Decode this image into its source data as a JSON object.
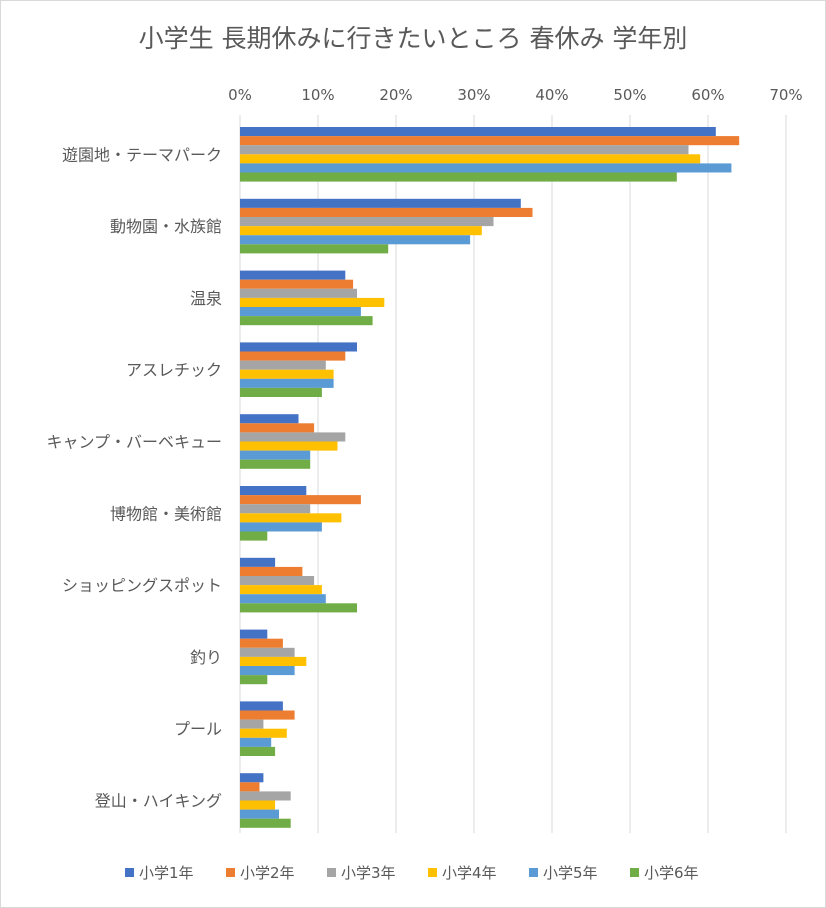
{
  "chart_data": {
    "type": "bar",
    "orientation": "horizontal",
    "title": "小学生 長期休みに行きたいところ 春休み 学年別",
    "xlabel": "",
    "ylabel": "",
    "xlim": [
      0,
      0.7
    ],
    "x_tick_labels": [
      "0%",
      "10%",
      "20%",
      "30%",
      "40%",
      "50%",
      "60%",
      "70%"
    ],
    "x_axis_position": "top",
    "grid": true,
    "legend_position": "bottom",
    "categories": [
      "遊園地・テーマパーク",
      "動物園・水族館",
      "温泉",
      "アスレチック",
      "キャンプ・バーベキュー",
      "博物館・美術館",
      "ショッピングスポット",
      "釣り",
      "プール",
      "登山・ハイキング"
    ],
    "series": [
      {
        "name": "小学1年",
        "color": "#4472C4",
        "values": [
          0.61,
          0.36,
          0.135,
          0.15,
          0.075,
          0.085,
          0.045,
          0.035,
          0.055,
          0.03
        ]
      },
      {
        "name": "小学2年",
        "color": "#ED7D31",
        "values": [
          0.64,
          0.375,
          0.145,
          0.135,
          0.095,
          0.155,
          0.08,
          0.055,
          0.07,
          0.025
        ]
      },
      {
        "name": "小学3年",
        "color": "#A5A5A5",
        "values": [
          0.575,
          0.325,
          0.15,
          0.11,
          0.135,
          0.09,
          0.095,
          0.07,
          0.03,
          0.065
        ]
      },
      {
        "name": "小学4年",
        "color": "#FFC000",
        "values": [
          0.59,
          0.31,
          0.185,
          0.12,
          0.125,
          0.13,
          0.105,
          0.085,
          0.06,
          0.045
        ]
      },
      {
        "name": "小学5年",
        "color": "#5B9BD5",
        "values": [
          0.63,
          0.295,
          0.155,
          0.12,
          0.09,
          0.105,
          0.11,
          0.07,
          0.04,
          0.05
        ]
      },
      {
        "name": "小学6年",
        "color": "#70AD47",
        "values": [
          0.56,
          0.19,
          0.17,
          0.105,
          0.09,
          0.035,
          0.15,
          0.035,
          0.045,
          0.065
        ]
      }
    ]
  }
}
